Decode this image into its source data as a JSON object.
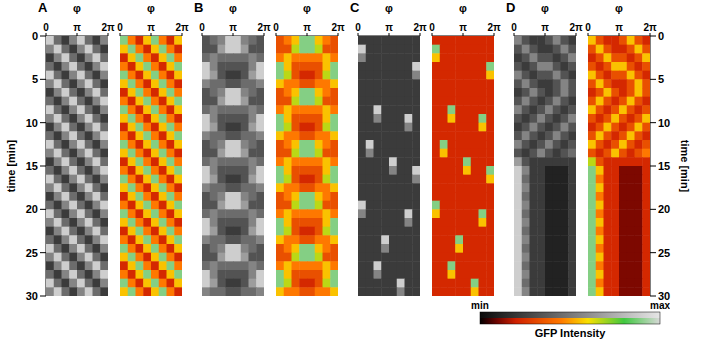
{
  "chart_data": {
    "type": "heatmap",
    "x_label": "φ",
    "y_label": "time [min]",
    "xlim": [
      0,
      6.2832
    ],
    "xticks": [
      {
        "value": 0,
        "label": "0"
      },
      {
        "value": 3.1416,
        "label": "π"
      },
      {
        "value": 6.2832,
        "label": "2π"
      }
    ],
    "ylim": [
      0,
      30
    ],
    "yticks": [
      0,
      5,
      10,
      15,
      20,
      25,
      30
    ],
    "colorbar": {
      "label": "GFP Intensity",
      "range": [
        0,
        9
      ],
      "ticks": [
        {
          "value": 0,
          "label": "min"
        },
        {
          "value": 9,
          "label": "max"
        }
      ]
    },
    "panels": [
      {
        "title": "A",
        "cells": [
          [
            8,
            4,
            2,
            5,
            8,
            4,
            2,
            5
          ],
          [
            5,
            8,
            4,
            2,
            5,
            8,
            4,
            2
          ],
          [
            2,
            5,
            8,
            4,
            2,
            5,
            8,
            4
          ],
          [
            4,
            2,
            5,
            8,
            4,
            2,
            5,
            8
          ],
          [
            8,
            4,
            2,
            5,
            8,
            4,
            2,
            5
          ],
          [
            5,
            8,
            4,
            2,
            5,
            8,
            4,
            2
          ],
          [
            2,
            5,
            8,
            4,
            2,
            5,
            8,
            4
          ],
          [
            4,
            2,
            5,
            8,
            4,
            2,
            5,
            8
          ],
          [
            8,
            4,
            2,
            5,
            8,
            4,
            2,
            5
          ],
          [
            5,
            8,
            4,
            2,
            5,
            8,
            4,
            2
          ],
          [
            2,
            5,
            8,
            4,
            2,
            5,
            8,
            4
          ],
          [
            4,
            2,
            5,
            8,
            4,
            2,
            5,
            8
          ],
          [
            8,
            4,
            2,
            5,
            8,
            4,
            2,
            5
          ],
          [
            5,
            8,
            4,
            2,
            5,
            8,
            4,
            2
          ],
          [
            2,
            5,
            8,
            4,
            2,
            5,
            8,
            4
          ],
          [
            4,
            2,
            5,
            8,
            4,
            2,
            5,
            8
          ],
          [
            8,
            4,
            2,
            5,
            8,
            4,
            2,
            5
          ],
          [
            5,
            8,
            4,
            2,
            5,
            8,
            4,
            2
          ],
          [
            2,
            5,
            8,
            4,
            2,
            5,
            8,
            4
          ],
          [
            4,
            2,
            5,
            8,
            4,
            2,
            5,
            8
          ],
          [
            8,
            4,
            2,
            5,
            8,
            4,
            2,
            5
          ],
          [
            5,
            8,
            4,
            2,
            5,
            8,
            4,
            2
          ],
          [
            2,
            5,
            8,
            4,
            2,
            5,
            8,
            4
          ],
          [
            4,
            2,
            5,
            8,
            4,
            2,
            5,
            8
          ],
          [
            8,
            4,
            2,
            5,
            8,
            4,
            2,
            5
          ],
          [
            5,
            8,
            4,
            2,
            5,
            8,
            4,
            2
          ],
          [
            2,
            5,
            8,
            4,
            2,
            5,
            8,
            4
          ],
          [
            4,
            2,
            5,
            8,
            4,
            2,
            5,
            8
          ],
          [
            8,
            4,
            2,
            5,
            8,
            4,
            2,
            5
          ],
          [
            5,
            8,
            4,
            2,
            5,
            8,
            4,
            2
          ]
        ]
      },
      {
        "title": "B",
        "cells": [
          [
            3,
            4,
            5,
            8,
            8,
            5,
            4,
            3
          ],
          [
            3,
            3,
            6,
            8,
            8,
            6,
            3,
            3
          ],
          [
            4,
            5,
            4,
            4,
            4,
            4,
            5,
            4
          ],
          [
            8,
            5,
            3,
            3,
            3,
            3,
            5,
            8
          ],
          [
            8,
            6,
            3,
            2,
            2,
            3,
            6,
            8
          ],
          [
            5,
            4,
            4,
            3,
            3,
            4,
            4,
            5
          ],
          [
            3,
            4,
            5,
            8,
            8,
            5,
            4,
            3
          ],
          [
            3,
            3,
            6,
            8,
            8,
            6,
            3,
            3
          ],
          [
            4,
            5,
            4,
            4,
            4,
            4,
            5,
            4
          ],
          [
            8,
            5,
            3,
            3,
            3,
            3,
            5,
            8
          ],
          [
            8,
            6,
            3,
            2,
            2,
            3,
            6,
            8
          ],
          [
            5,
            4,
            4,
            3,
            3,
            4,
            4,
            5
          ],
          [
            3,
            4,
            5,
            8,
            8,
            5,
            4,
            3
          ],
          [
            3,
            3,
            6,
            8,
            8,
            6,
            3,
            3
          ],
          [
            4,
            5,
            4,
            4,
            4,
            4,
            5,
            4
          ],
          [
            8,
            5,
            3,
            3,
            3,
            3,
            5,
            8
          ],
          [
            8,
            6,
            3,
            2,
            2,
            3,
            6,
            8
          ],
          [
            5,
            4,
            4,
            3,
            3,
            4,
            4,
            5
          ],
          [
            3,
            4,
            5,
            8,
            8,
            5,
            4,
            3
          ],
          [
            3,
            3,
            6,
            8,
            8,
            6,
            3,
            3
          ],
          [
            4,
            5,
            4,
            4,
            4,
            4,
            5,
            4
          ],
          [
            8,
            5,
            3,
            3,
            3,
            3,
            5,
            8
          ],
          [
            8,
            6,
            3,
            2,
            2,
            3,
            6,
            8
          ],
          [
            5,
            4,
            4,
            3,
            3,
            4,
            4,
            5
          ],
          [
            3,
            4,
            5,
            8,
            8,
            5,
            4,
            3
          ],
          [
            3,
            3,
            6,
            8,
            8,
            6,
            3,
            3
          ],
          [
            4,
            5,
            4,
            4,
            4,
            4,
            5,
            4
          ],
          [
            8,
            5,
            3,
            3,
            3,
            3,
            5,
            8
          ],
          [
            8,
            6,
            3,
            2,
            2,
            3,
            6,
            8
          ],
          [
            5,
            4,
            4,
            3,
            3,
            4,
            4,
            5
          ]
        ]
      },
      {
        "title": "C",
        "cells": [
          [
            2,
            2,
            2,
            2,
            2,
            2,
            2,
            2
          ],
          [
            8,
            2,
            2,
            2,
            2,
            2,
            2,
            2
          ],
          [
            5,
            2,
            2,
            2,
            2,
            2,
            2,
            2
          ],
          [
            2,
            2,
            2,
            2,
            2,
            2,
            2,
            8
          ],
          [
            2,
            2,
            2,
            2,
            2,
            2,
            2,
            5
          ],
          [
            2,
            2,
            2,
            2,
            2,
            2,
            2,
            2
          ],
          [
            2,
            2,
            2,
            2,
            2,
            2,
            2,
            2
          ],
          [
            2,
            2,
            2,
            2,
            2,
            2,
            2,
            2
          ],
          [
            2,
            2,
            8,
            2,
            2,
            2,
            2,
            2
          ],
          [
            2,
            2,
            5,
            2,
            2,
            2,
            8,
            2
          ],
          [
            2,
            2,
            2,
            2,
            2,
            2,
            5,
            2
          ],
          [
            2,
            2,
            2,
            2,
            2,
            2,
            2,
            2
          ],
          [
            2,
            8,
            2,
            2,
            2,
            2,
            2,
            2
          ],
          [
            2,
            5,
            2,
            2,
            2,
            2,
            2,
            2
          ],
          [
            2,
            2,
            2,
            2,
            8,
            2,
            2,
            2
          ],
          [
            2,
            2,
            2,
            2,
            5,
            2,
            2,
            8
          ],
          [
            2,
            2,
            2,
            2,
            2,
            2,
            2,
            5
          ],
          [
            2,
            2,
            2,
            2,
            2,
            2,
            2,
            2
          ],
          [
            2,
            2,
            2,
            2,
            2,
            2,
            2,
            2
          ],
          [
            8,
            2,
            2,
            2,
            2,
            2,
            2,
            2
          ],
          [
            5,
            2,
            2,
            2,
            2,
            2,
            8,
            2
          ],
          [
            2,
            2,
            2,
            2,
            2,
            2,
            5,
            2
          ],
          [
            2,
            2,
            2,
            2,
            2,
            2,
            2,
            2
          ],
          [
            2,
            2,
            2,
            8,
            2,
            2,
            2,
            2
          ],
          [
            2,
            2,
            2,
            5,
            2,
            2,
            2,
            2
          ],
          [
            2,
            2,
            2,
            2,
            2,
            2,
            2,
            2
          ],
          [
            2,
            2,
            8,
            2,
            2,
            2,
            2,
            2
          ],
          [
            2,
            2,
            5,
            2,
            2,
            2,
            2,
            2
          ],
          [
            2,
            2,
            2,
            2,
            2,
            8,
            2,
            2
          ],
          [
            2,
            2,
            2,
            2,
            2,
            5,
            2,
            2
          ]
        ]
      },
      {
        "title": "D",
        "cells": [
          [
            5,
            3,
            2,
            2,
            3,
            5,
            3,
            2
          ],
          [
            3,
            5,
            3,
            2,
            2,
            3,
            5,
            3
          ],
          [
            2,
            3,
            5,
            3,
            3,
            2,
            3,
            5
          ],
          [
            3,
            2,
            3,
            5,
            5,
            3,
            2,
            3
          ],
          [
            5,
            3,
            2,
            3,
            3,
            5,
            3,
            2
          ],
          [
            3,
            5,
            3,
            2,
            2,
            3,
            5,
            3
          ],
          [
            2,
            3,
            5,
            3,
            2,
            3,
            5,
            3
          ],
          [
            3,
            5,
            3,
            2,
            3,
            5,
            3,
            2
          ],
          [
            5,
            3,
            2,
            3,
            5,
            3,
            2,
            3
          ],
          [
            3,
            2,
            3,
            5,
            3,
            2,
            3,
            5
          ],
          [
            2,
            3,
            5,
            3,
            2,
            3,
            5,
            3
          ],
          [
            3,
            5,
            3,
            2,
            3,
            5,
            3,
            2
          ],
          [
            5,
            3,
            2,
            3,
            5,
            3,
            2,
            3
          ],
          [
            3,
            2,
            3,
            5,
            3,
            2,
            3,
            4
          ],
          [
            6,
            3,
            2,
            2,
            2,
            2,
            2,
            2
          ],
          [
            8,
            5,
            2,
            2,
            1,
            1,
            1,
            2
          ],
          [
            8,
            4,
            2,
            2,
            1,
            1,
            1,
            2
          ],
          [
            8,
            5,
            2,
            2,
            1,
            1,
            1,
            2
          ],
          [
            8,
            4,
            2,
            2,
            1,
            1,
            1,
            2
          ],
          [
            8,
            5,
            2,
            2,
            1,
            1,
            1,
            2
          ],
          [
            8,
            4,
            2,
            2,
            1,
            1,
            1,
            2
          ],
          [
            8,
            5,
            2,
            2,
            1,
            1,
            1,
            2
          ],
          [
            8,
            4,
            2,
            2,
            1,
            1,
            1,
            2
          ],
          [
            8,
            5,
            2,
            2,
            1,
            1,
            1,
            2
          ],
          [
            8,
            4,
            2,
            2,
            1,
            1,
            1,
            2
          ],
          [
            8,
            5,
            2,
            2,
            1,
            1,
            1,
            2
          ],
          [
            8,
            4,
            2,
            2,
            1,
            1,
            1,
            2
          ],
          [
            8,
            5,
            2,
            2,
            1,
            1,
            1,
            2
          ],
          [
            8,
            4,
            2,
            2,
            1,
            1,
            1,
            2
          ],
          [
            8,
            5,
            2,
            2,
            1,
            1,
            1,
            2
          ]
        ]
      }
    ]
  }
}
